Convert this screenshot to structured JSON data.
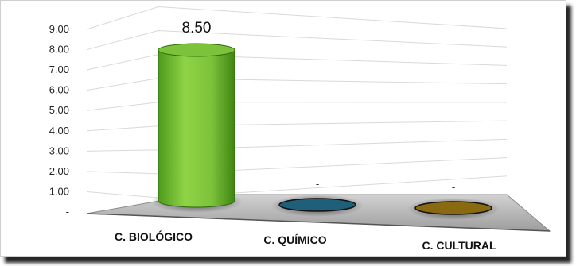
{
  "chart_data": {
    "type": "bar",
    "categories": [
      "C. BIOLÓGICO",
      "C. QUÍMICO",
      "C. CULTURAL"
    ],
    "values": [
      8.5,
      0,
      0
    ],
    "data_labels": [
      "8.50",
      "-",
      "-"
    ],
    "y_ticks": [
      "-",
      "1.00",
      "2.00",
      "3.00",
      "4.00",
      "5.00",
      "6.00",
      "7.00",
      "8.00",
      "9.00"
    ],
    "ylim": [
      0,
      9
    ],
    "grid": true,
    "colors": [
      "#79c13a",
      "#1f5f7a",
      "#8a6a10"
    ]
  }
}
